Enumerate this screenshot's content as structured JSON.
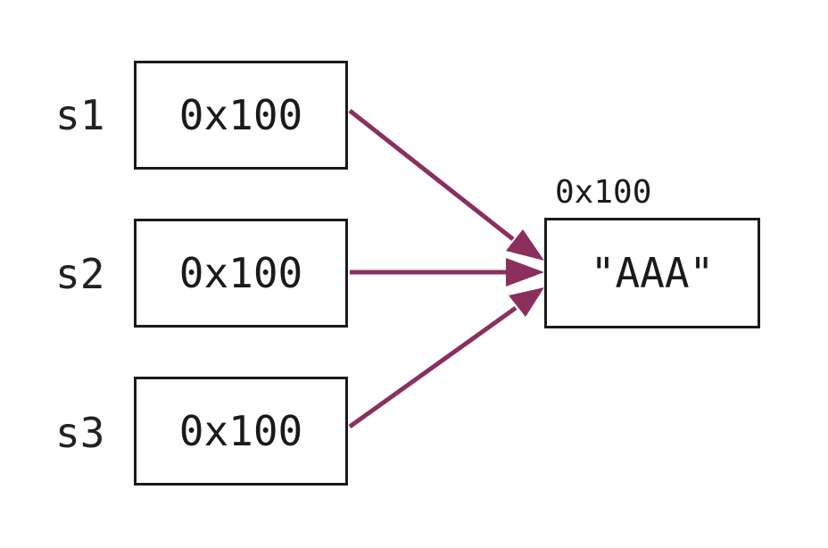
{
  "variables": [
    {
      "name": "s1",
      "value": "0x100"
    },
    {
      "name": "s2",
      "value": "0x100"
    },
    {
      "name": "s3",
      "value": "0x100"
    }
  ],
  "target": {
    "address": "0x100",
    "value": "\"AAA\""
  },
  "colors": {
    "arrow": "#8b2f5e",
    "border": "#1a1a1a",
    "text": "#1a1a1a"
  }
}
